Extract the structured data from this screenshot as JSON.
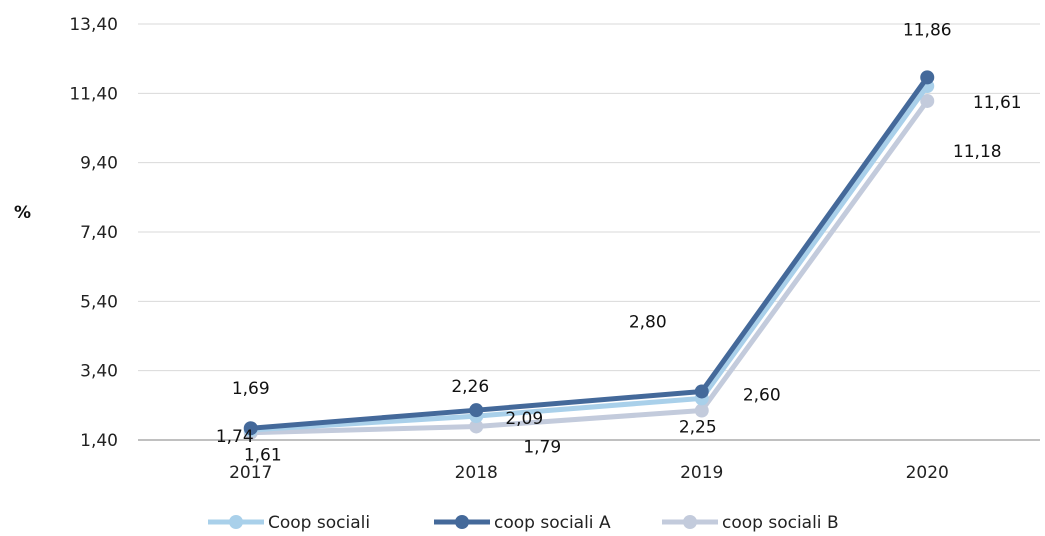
{
  "chart_data": {
    "type": "line",
    "title": "",
    "xlabel": "",
    "ylabel": "%",
    "categories": [
      "2017",
      "2018",
      "2019",
      "2020"
    ],
    "ylim": [
      1.4,
      13.4
    ],
    "yticks": [
      "1,40",
      "3,40",
      "5,40",
      "7,40",
      "9,40",
      "11,40",
      "13,40"
    ],
    "grid": true,
    "legend_position": "bottom",
    "series": [
      {
        "name": "Coop sociali",
        "color": "#a9d0ea",
        "values": [
          1.69,
          2.09,
          2.6,
          11.61
        ],
        "labels": [
          "1,69",
          "2,09",
          "2,60",
          "11,61"
        ]
      },
      {
        "name": "coop sociali A",
        "color": "#44699a",
        "values": [
          1.74,
          2.26,
          2.8,
          11.86
        ],
        "labels": [
          "1,74",
          "2,26",
          "2,80",
          "11,86"
        ]
      },
      {
        "name": "coop sociali B",
        "color": "#c3cbdc",
        "values": [
          1.61,
          1.79,
          2.25,
          11.18
        ],
        "labels": [
          "1,61",
          "1,79",
          "2,25",
          "11,18"
        ]
      }
    ]
  }
}
